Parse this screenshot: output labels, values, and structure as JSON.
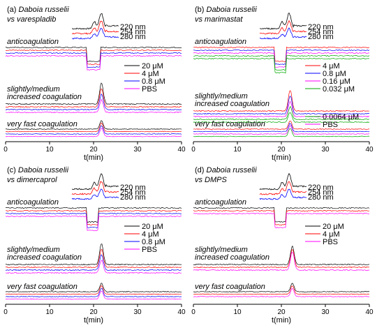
{
  "wavelengths": [
    {
      "label": "220 nm",
      "color": "#000000"
    },
    {
      "label": "254 nm",
      "color": "#ff0000"
    },
    {
      "label": "280 nm",
      "color": "#0000ff"
    }
  ],
  "region_labels": {
    "anti": "anticoagulation",
    "slight_1": "slightly/medium",
    "slight_2": "increased coagulation",
    "fast": "very fast coagulation"
  },
  "chart_data": [
    {
      "type": "line",
      "panel": "(a)",
      "title_species": "Daboia russelii",
      "title_vs": "vs varespladib",
      "xlabel": "t(min)",
      "xlim": [
        0,
        40
      ],
      "xticks": [
        0,
        10,
        20,
        30,
        40
      ],
      "legend": [
        "20 μM",
        "4 μM",
        "0.8 μM",
        "PBS"
      ],
      "series_colors": [
        "#000000",
        "#ff0000",
        "#0000ff",
        "#ff00ff"
      ],
      "anticoagulation_dip": [
        18.5,
        21.5
      ],
      "coagulation_peak_min": 21.8
    },
    {
      "type": "line",
      "panel": "(b)",
      "title_species": "Daboia russelii",
      "title_vs": "vs marimastat",
      "xlabel": "t(min)",
      "xlim": [
        0,
        40
      ],
      "xticks": [
        0,
        10,
        20,
        30,
        40
      ],
      "legend": [
        "4 μM",
        "0.8 μM",
        "0.16 μM",
        "0.032 μM",
        "0.0064 μM",
        "PBS"
      ],
      "series_colors": [
        "#ff0000",
        "#0000ff",
        "#ff00ff",
        "#00aa00",
        "#00aa00",
        "#ff00ff"
      ],
      "anticoagulation_dip": [
        18.5,
        21
      ],
      "coagulation_peak_min": 22
    },
    {
      "type": "line",
      "panel": "(c)",
      "title_species": "Daboia russelii",
      "title_vs": "vs dimercaprol",
      "xlabel": "t(min)",
      "xlim": [
        0,
        40
      ],
      "xticks": [
        0,
        10,
        20,
        30,
        40
      ],
      "legend": [
        "20 μM",
        "4 μM",
        "0.8 μM",
        "PBS"
      ],
      "series_colors": [
        "#000000",
        "#ff0000",
        "#0000ff",
        "#ff00ff"
      ],
      "anticoagulation_dip": [
        18.5,
        21
      ],
      "coagulation_peak_min": 21.8
    },
    {
      "type": "line",
      "panel": "(d)",
      "title_species": "Daboia russelii",
      "title_vs": "vs DMPS",
      "xlabel": "t(min)",
      "xlim": [
        0,
        40
      ],
      "xticks": [
        0,
        10,
        20,
        30,
        40
      ],
      "legend": [
        "20 μM",
        "4 μM",
        "PBS"
      ],
      "series_colors": [
        "#000000",
        "#ff0000",
        "#ff00ff"
      ],
      "anticoagulation_dip": [
        18.5,
        21
      ],
      "coagulation_peak_min": 22.5
    }
  ]
}
